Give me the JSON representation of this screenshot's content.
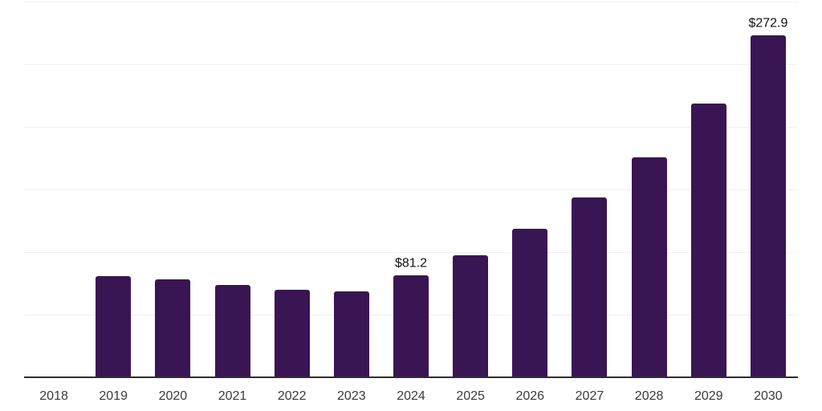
{
  "page": {
    "background_color": "#ffffff"
  },
  "chart_data": {
    "type": "bar",
    "title": "",
    "xlabel": "",
    "ylabel": "",
    "categories": [
      "2018",
      "2019",
      "2020",
      "2021",
      "2022",
      "2023",
      "2024",
      "2025",
      "2026",
      "2027",
      "2028",
      "2029",
      "2030"
    ],
    "values": [
      0,
      80.8,
      78.4,
      73.7,
      69.9,
      68.3,
      81.2,
      97.6,
      118.5,
      143.6,
      175.8,
      218.6,
      272.9
    ],
    "value_labels": {
      "2024": "$81.2",
      "2030": "$272.9"
    },
    "ylim": [
      0,
      300
    ],
    "grid_step": 50,
    "grid": true,
    "y_tick_labels_visible": false,
    "legend": "none",
    "bar_color": "#3a1554",
    "axis_color": "#2e2e2e",
    "grid_color": "#f0f0f0",
    "tick_label_color": "#3a3a3a",
    "value_label_color": "#111111"
  }
}
